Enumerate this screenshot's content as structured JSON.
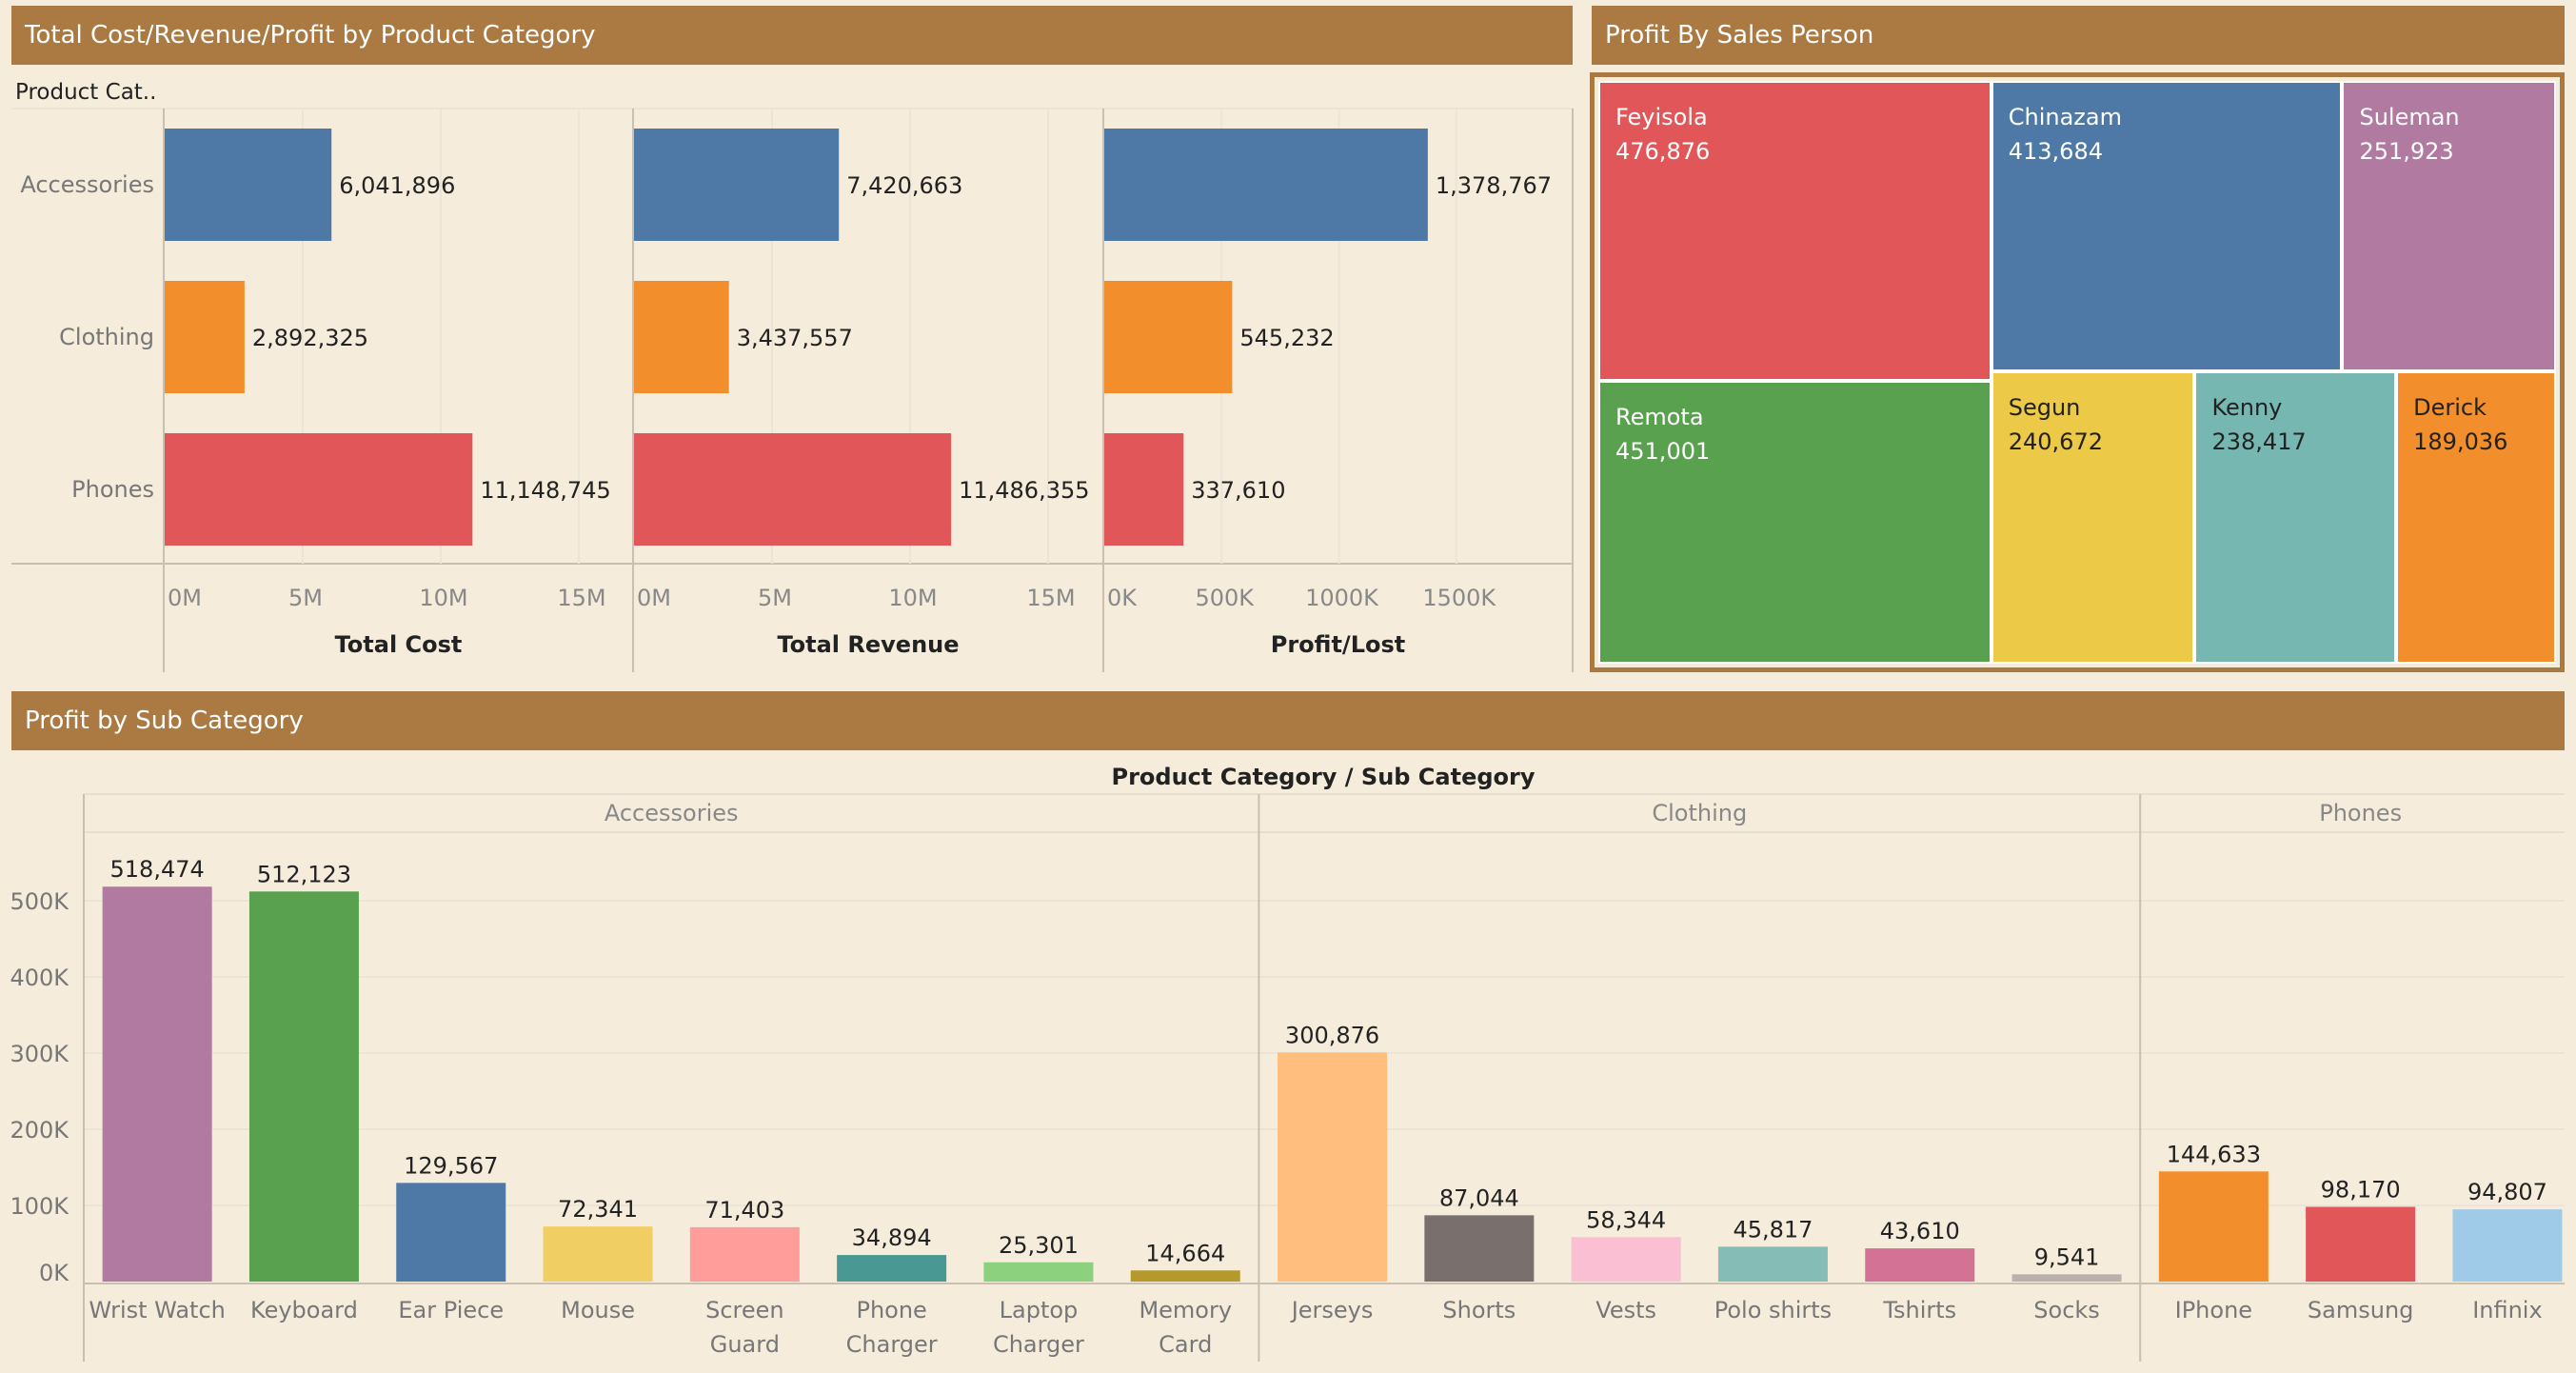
{
  "headers": {
    "category_panel": "Total Cost/Revenue/Profit by Product Category",
    "salesperson_panel": "Profit By Sales Person",
    "subcategory_panel": "Profit by Sub Category"
  },
  "chart_data": [
    {
      "type": "bar",
      "orientation": "horizontal",
      "row_header": "Product Cat..",
      "categories": [
        "Accessories",
        "Clothing",
        "Phones"
      ],
      "colors": [
        "#4e79a7",
        "#f28e2b",
        "#e15759"
      ],
      "panels": [
        {
          "xlabel": "Total Cost",
          "values": [
            6041896,
            2892325,
            11148745
          ],
          "value_labels": [
            "6,041,896",
            "2,892,325",
            "11,148,745"
          ],
          "xlim": [
            0,
            17000000
          ],
          "ticks": [
            0,
            5000000,
            10000000,
            15000000
          ],
          "tick_labels": [
            "0M",
            "5M",
            "10M",
            "15M"
          ]
        },
        {
          "xlabel": "Total Revenue",
          "values": [
            7420663,
            3437557,
            11486355
          ],
          "value_labels": [
            "7,420,663",
            "3,437,557",
            "11,486,355"
          ],
          "xlim": [
            0,
            17000000
          ],
          "ticks": [
            0,
            5000000,
            10000000,
            15000000
          ],
          "tick_labels": [
            "0M",
            "5M",
            "10M",
            "15M"
          ]
        },
        {
          "xlabel": "Profit/Lost",
          "values": [
            1378767,
            545232,
            337610
          ],
          "value_labels": [
            "1,378,767",
            "545,232",
            "337,610"
          ],
          "xlim": [
            0,
            2000000
          ],
          "ticks": [
            0,
            500000,
            1000000,
            1500000
          ],
          "tick_labels": [
            "0K",
            "500K",
            "1000K",
            "1500K"
          ]
        }
      ]
    },
    {
      "type": "treemap",
      "items": [
        {
          "name": "Feyisola",
          "value": 476876,
          "label": "476,876",
          "color": "#e15759"
        },
        {
          "name": "Remota",
          "value": 451001,
          "label": "451,001",
          "color": "#59a14f"
        },
        {
          "name": "Chinazam",
          "value": 413684,
          "label": "413,684",
          "color": "#4e79a7"
        },
        {
          "name": "Suleman",
          "value": 251923,
          "label": "251,923",
          "color": "#b07aa1"
        },
        {
          "name": "Segun",
          "value": 240672,
          "label": "240,672",
          "color": "#edc948"
        },
        {
          "name": "Kenny",
          "value": 238417,
          "label": "238,417",
          "color": "#76b7b2"
        },
        {
          "name": "Derick",
          "value": 189036,
          "label": "189,036",
          "color": "#f28e2b"
        }
      ]
    },
    {
      "type": "bar",
      "title": "Product Category  /  Sub Category",
      "ylim": [
        -20000,
        570000
      ],
      "ticks": [
        0,
        100000,
        200000,
        300000,
        400000,
        500000
      ],
      "tick_labels": [
        "0K",
        "100K",
        "200K",
        "300K",
        "400K",
        "500K"
      ],
      "groups": [
        {
          "name": "Accessories",
          "items": [
            {
              "label": [
                "Wrist Watch"
              ],
              "value": 518474,
              "value_label": "518,474",
              "color": "#b07aa1"
            },
            {
              "label": [
                "Keyboard"
              ],
              "value": 512123,
              "value_label": "512,123",
              "color": "#59a14f"
            },
            {
              "label": [
                "Ear Piece"
              ],
              "value": 129567,
              "value_label": "129,567",
              "color": "#4e79a7"
            },
            {
              "label": [
                "Mouse"
              ],
              "value": 72341,
              "value_label": "72,341",
              "color": "#f1ce63"
            },
            {
              "label": [
                "Screen",
                "Guard"
              ],
              "value": 71403,
              "value_label": "71,403",
              "color": "#ff9d9a"
            },
            {
              "label": [
                "Phone",
                "Charger"
              ],
              "value": 34894,
              "value_label": "34,894",
              "color": "#499894"
            },
            {
              "label": [
                "Laptop",
                "Charger"
              ],
              "value": 25301,
              "value_label": "25,301",
              "color": "#8cd17d"
            },
            {
              "label": [
                "Memory",
                "Card"
              ],
              "value": 14664,
              "value_label": "14,664",
              "color": "#b6992d"
            }
          ]
        },
        {
          "name": "Clothing",
          "items": [
            {
              "label": [
                "Jerseys"
              ],
              "value": 300876,
              "value_label": "300,876",
              "color": "#ffbe7d"
            },
            {
              "label": [
                "Shorts"
              ],
              "value": 87044,
              "value_label": "87,044",
              "color": "#79706e"
            },
            {
              "label": [
                "Vests"
              ],
              "value": 58344,
              "value_label": "58,344",
              "color": "#fabfd2"
            },
            {
              "label": [
                "Polo shirts"
              ],
              "value": 45817,
              "value_label": "45,817",
              "color": "#86bcb6"
            },
            {
              "label": [
                "Tshirts"
              ],
              "value": 43610,
              "value_label": "43,610",
              "color": "#d37295"
            },
            {
              "label": [
                "Socks"
              ],
              "value": 9541,
              "value_label": "9,541",
              "color": "#bab0ac"
            }
          ]
        },
        {
          "name": "Phones",
          "items": [
            {
              "label": [
                "IPhone"
              ],
              "value": 144633,
              "value_label": "144,633",
              "color": "#f28e2b"
            },
            {
              "label": [
                "Samsung"
              ],
              "value": 98170,
              "value_label": "98,170",
              "color": "#e15759"
            },
            {
              "label": [
                "Infinix"
              ],
              "value": 94807,
              "value_label": "94,807",
              "color": "#a0cbe8"
            }
          ]
        }
      ]
    }
  ]
}
